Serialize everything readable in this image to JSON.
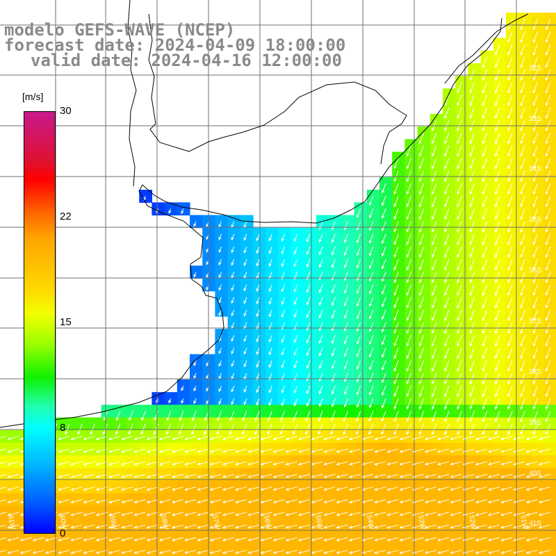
{
  "title": {
    "model": "modelo GEFS-WAVE (NCEP)",
    "forecast": "forecast date: 2024-04-09 18:00:00",
    "valid": "valid date: 2024-04-16 12:00:00"
  },
  "colorbar": {
    "unit": "[m/s]",
    "ticks": [
      "30",
      "22",
      "15",
      "8",
      "0"
    ],
    "tick_values": [
      30,
      22,
      15,
      8,
      0
    ],
    "range": [
      0,
      30
    ],
    "colors": [
      "#0000ff",
      "#005aff",
      "#00b4ff",
      "#00ffff",
      "#20ffb0",
      "#10f000",
      "#9cff00",
      "#f2ff00",
      "#ffd800",
      "#ffa500",
      "#ff6600",
      "#ff0000",
      "#e0102e",
      "#c81a8c"
    ]
  },
  "map": {
    "lat_labels": [
      "32S",
      "33S",
      "34S",
      "35S",
      "36S",
      "37S",
      "38S",
      "39S",
      "40S",
      "41S"
    ],
    "lon_labels": [
      "61W",
      "60W",
      "59W",
      "58W",
      "57W",
      "56W",
      "55W",
      "54W",
      "53W",
      "52W",
      "51W"
    ],
    "grid": true,
    "field": "wind speed with direction arrows"
  }
}
